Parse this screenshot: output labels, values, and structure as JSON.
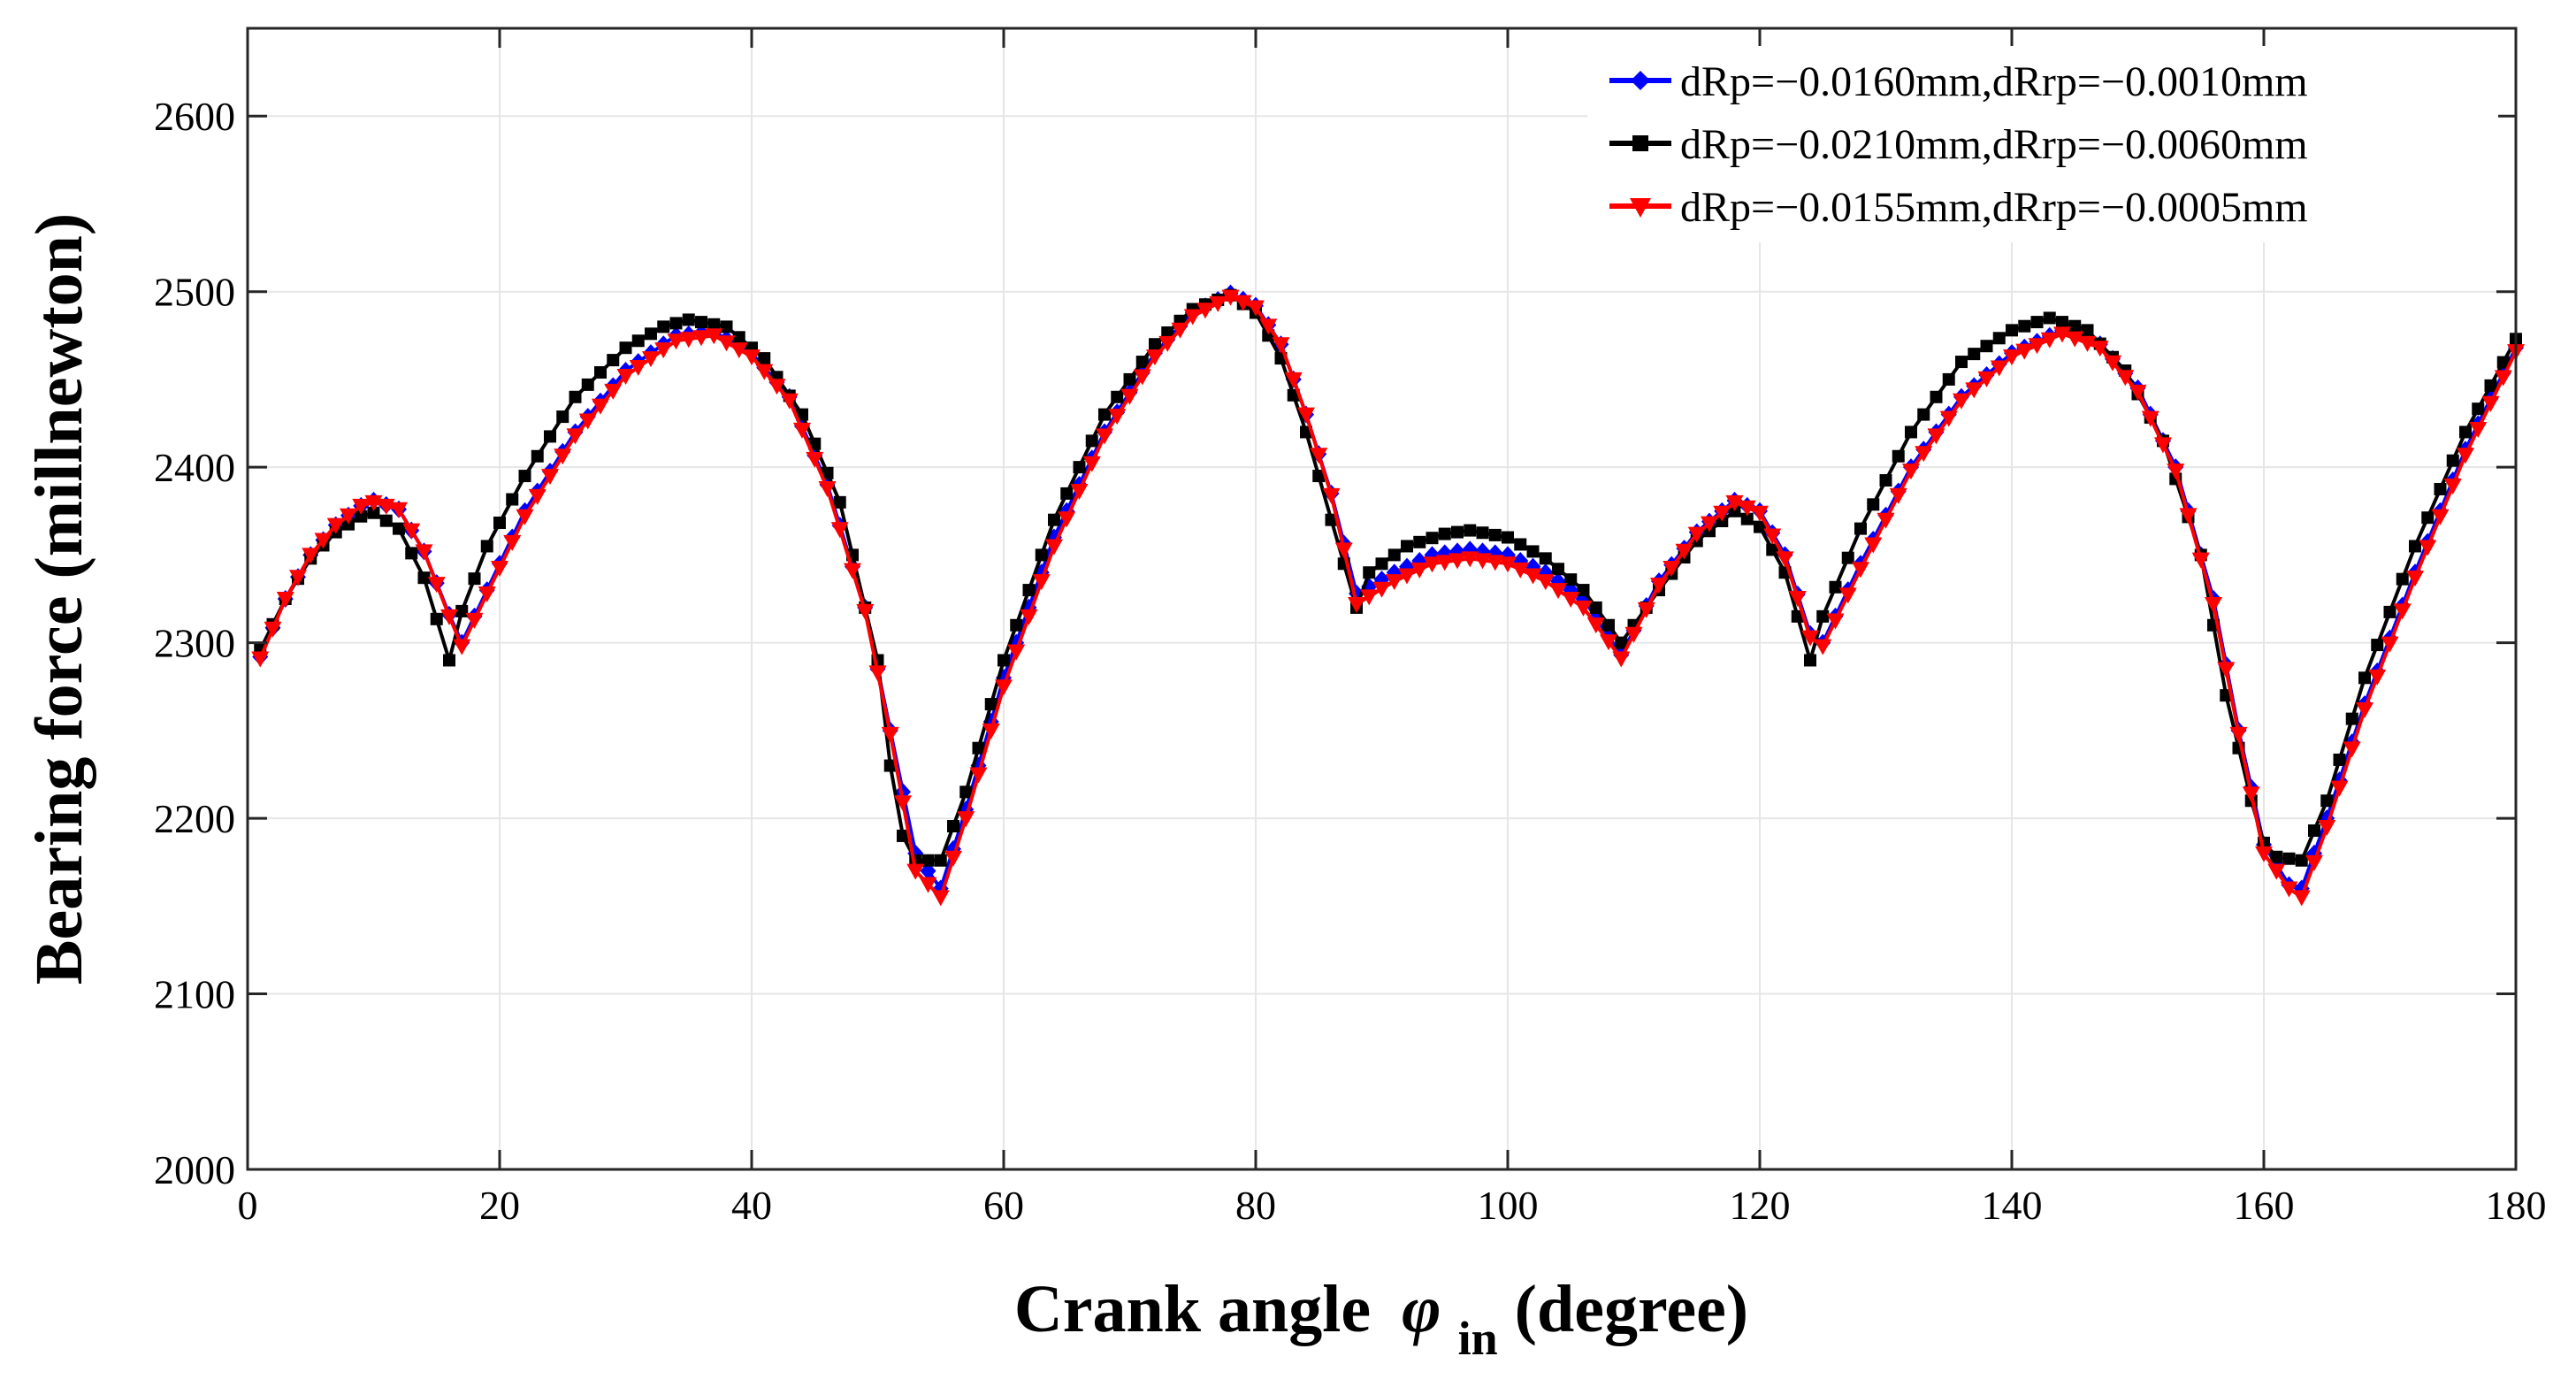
{
  "chart_data": {
    "type": "line",
    "title": "",
    "xlabel": "Crank angle",
    "xlabel_symbol": "φ",
    "xlabel_subscript": "in",
    "xlabel_unit": "(degree)",
    "ylabel": "Bearing force (millnewton)",
    "xlim": [
      0,
      180
    ],
    "ylim": [
      2000,
      2650
    ],
    "xticks": [
      0,
      20,
      40,
      60,
      80,
      100,
      120,
      140,
      160,
      180
    ],
    "yticks": [
      2000,
      2100,
      2200,
      2300,
      2400,
      2500,
      2600
    ],
    "grid": true,
    "legend_position": "top-right",
    "series": [
      {
        "name": "dRp=−0.0160mm,dRrp=−0.0010mm",
        "color": "#0000ff",
        "marker": "diamond",
        "points": [
          [
            1,
            2292
          ],
          [
            3,
            2325
          ],
          [
            5,
            2350
          ],
          [
            7,
            2367
          ],
          [
            9,
            2378
          ],
          [
            10,
            2381
          ],
          [
            12,
            2376
          ],
          [
            14,
            2352
          ],
          [
            16,
            2316
          ],
          [
            17,
            2300
          ],
          [
            19,
            2330
          ],
          [
            22,
            2375
          ],
          [
            26,
            2420
          ],
          [
            30,
            2455
          ],
          [
            34,
            2475
          ],
          [
            37,
            2477
          ],
          [
            40,
            2465
          ],
          [
            43,
            2440
          ],
          [
            46,
            2390
          ],
          [
            49,
            2320
          ],
          [
            51,
            2250
          ],
          [
            53,
            2180
          ],
          [
            55,
            2160
          ],
          [
            57,
            2205
          ],
          [
            60,
            2280
          ],
          [
            64,
            2360
          ],
          [
            68,
            2420
          ],
          [
            72,
            2465
          ],
          [
            75,
            2488
          ],
          [
            78,
            2499
          ],
          [
            80,
            2492
          ],
          [
            82,
            2470
          ],
          [
            84,
            2430
          ],
          [
            86,
            2385
          ],
          [
            88,
            2328
          ],
          [
            91,
            2340
          ],
          [
            94,
            2350
          ],
          [
            97,
            2353
          ],
          [
            100,
            2350
          ],
          [
            103,
            2340
          ],
          [
            106,
            2325
          ],
          [
            109,
            2293
          ],
          [
            112,
            2335
          ],
          [
            115,
            2363
          ],
          [
            118,
            2381
          ],
          [
            120,
            2375
          ],
          [
            122,
            2350
          ],
          [
            124,
            2305
          ],
          [
            125,
            2300
          ],
          [
            128,
            2345
          ],
          [
            132,
            2400
          ],
          [
            136,
            2440
          ],
          [
            140,
            2465
          ],
          [
            144,
            2478
          ],
          [
            147,
            2470
          ],
          [
            150,
            2445
          ],
          [
            153,
            2400
          ],
          [
            156,
            2325
          ],
          [
            158,
            2250
          ],
          [
            160,
            2185
          ],
          [
            162,
            2162
          ],
          [
            163,
            2160
          ],
          [
            165,
            2200
          ],
          [
            168,
            2265
          ],
          [
            172,
            2340
          ],
          [
            176,
            2410
          ],
          [
            180,
            2468
          ]
        ]
      },
      {
        "name": "dRp=−0.0210mm,dRrp=−0.0060mm",
        "color": "#000000",
        "marker": "square",
        "points": [
          [
            1,
            2296
          ],
          [
            3,
            2325
          ],
          [
            5,
            2348
          ],
          [
            7,
            2363
          ],
          [
            9,
            2372
          ],
          [
            10,
            2374
          ],
          [
            12,
            2365
          ],
          [
            14,
            2337
          ],
          [
            16,
            2290
          ],
          [
            17,
            2318
          ],
          [
            19,
            2355
          ],
          [
            22,
            2395
          ],
          [
            26,
            2440
          ],
          [
            30,
            2468
          ],
          [
            33,
            2480
          ],
          [
            35,
            2484
          ],
          [
            38,
            2480
          ],
          [
            41,
            2462
          ],
          [
            44,
            2430
          ],
          [
            47,
            2380
          ],
          [
            50,
            2290
          ],
          [
            51,
            2230
          ],
          [
            52,
            2190
          ],
          [
            53,
            2176
          ],
          [
            55,
            2176
          ],
          [
            57,
            2215
          ],
          [
            60,
            2290
          ],
          [
            64,
            2370
          ],
          [
            68,
            2430
          ],
          [
            72,
            2470
          ],
          [
            75,
            2490
          ],
          [
            78,
            2498
          ],
          [
            80,
            2488
          ],
          [
            82,
            2462
          ],
          [
            84,
            2420
          ],
          [
            86,
            2370
          ],
          [
            88,
            2320
          ],
          [
            89,
            2340
          ],
          [
            92,
            2355
          ],
          [
            95,
            2362
          ],
          [
            97,
            2364
          ],
          [
            100,
            2360
          ],
          [
            103,
            2348
          ],
          [
            106,
            2330
          ],
          [
            109,
            2300
          ],
          [
            112,
            2330
          ],
          [
            115,
            2358
          ],
          [
            118,
            2375
          ],
          [
            120,
            2366
          ],
          [
            122,
            2340
          ],
          [
            124,
            2290
          ],
          [
            125,
            2315
          ],
          [
            128,
            2365
          ],
          [
            132,
            2420
          ],
          [
            136,
            2460
          ],
          [
            140,
            2478
          ],
          [
            143,
            2485
          ],
          [
            146,
            2478
          ],
          [
            149,
            2455
          ],
          [
            152,
            2415
          ],
          [
            155,
            2350
          ],
          [
            157,
            2270
          ],
          [
            159,
            2210
          ],
          [
            160,
            2186
          ],
          [
            161,
            2178
          ],
          [
            163,
            2176
          ],
          [
            165,
            2210
          ],
          [
            168,
            2280
          ],
          [
            172,
            2355
          ],
          [
            176,
            2420
          ],
          [
            180,
            2473
          ]
        ]
      },
      {
        "name": "dRp=−0.0155mm,dRrp=−0.0005mm",
        "color": "#ff0000",
        "marker": "triangle-down",
        "points": [
          [
            1,
            2291
          ],
          [
            3,
            2325
          ],
          [
            5,
            2350
          ],
          [
            7,
            2367
          ],
          [
            9,
            2378
          ],
          [
            10,
            2380
          ],
          [
            12,
            2376
          ],
          [
            14,
            2352
          ],
          [
            16,
            2315
          ],
          [
            17,
            2298
          ],
          [
            19,
            2328
          ],
          [
            22,
            2372
          ],
          [
            26,
            2418
          ],
          [
            30,
            2452
          ],
          [
            34,
            2472
          ],
          [
            37,
            2475
          ],
          [
            40,
            2463
          ],
          [
            43,
            2438
          ],
          [
            46,
            2388
          ],
          [
            49,
            2318
          ],
          [
            51,
            2248
          ],
          [
            53,
            2170
          ],
          [
            55,
            2155
          ],
          [
            57,
            2200
          ],
          [
            60,
            2275
          ],
          [
            64,
            2355
          ],
          [
            68,
            2418
          ],
          [
            72,
            2463
          ],
          [
            75,
            2486
          ],
          [
            78,
            2497
          ],
          [
            80,
            2491
          ],
          [
            82,
            2470
          ],
          [
            84,
            2430
          ],
          [
            86,
            2384
          ],
          [
            88,
            2322
          ],
          [
            91,
            2335
          ],
          [
            94,
            2345
          ],
          [
            97,
            2348
          ],
          [
            100,
            2345
          ],
          [
            103,
            2335
          ],
          [
            106,
            2320
          ],
          [
            109,
            2291
          ],
          [
            112,
            2333
          ],
          [
            115,
            2362
          ],
          [
            118,
            2380
          ],
          [
            120,
            2374
          ],
          [
            122,
            2348
          ],
          [
            124,
            2303
          ],
          [
            125,
            2298
          ],
          [
            128,
            2342
          ],
          [
            132,
            2398
          ],
          [
            136,
            2438
          ],
          [
            140,
            2463
          ],
          [
            144,
            2476
          ],
          [
            147,
            2468
          ],
          [
            150,
            2443
          ],
          [
            153,
            2398
          ],
          [
            156,
            2322
          ],
          [
            158,
            2248
          ],
          [
            160,
            2180
          ],
          [
            162,
            2160
          ],
          [
            163,
            2155
          ],
          [
            165,
            2195
          ],
          [
            168,
            2262
          ],
          [
            172,
            2337
          ],
          [
            176,
            2407
          ],
          [
            180,
            2466
          ]
        ]
      }
    ]
  }
}
